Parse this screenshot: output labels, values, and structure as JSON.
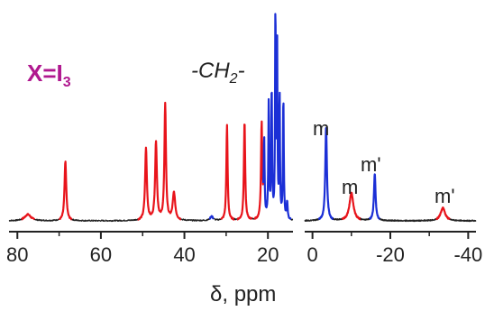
{
  "chart_data": [
    {
      "type": "line",
      "panel": "left",
      "xlabel": "δ, ppm",
      "xlim": [
        82,
        14
      ],
      "ticks": [
        80,
        60,
        40,
        20
      ],
      "tick_labels": [
        "80",
        "60",
        "40",
        "20"
      ],
      "colors": {
        "baseline": "#222222",
        "red": "#e8141b",
        "blue": "#1b2fd6"
      },
      "annotations": {
        "compound": "X=I",
        "compound_sub": "3",
        "ch2_text": "-CH",
        "ch2_sub": "2",
        "ch2_tail": "-"
      },
      "series": [
        {
          "color": "red",
          "peaks": [
            {
              "x": 77.5,
              "h": 0.03,
              "w": 0.9
            },
            {
              "x": 68.5,
              "h": 0.28,
              "w": 0.25
            },
            {
              "x": 49.2,
              "h": 0.34,
              "w": 0.25
            },
            {
              "x": 46.8,
              "h": 0.37,
              "w": 0.25
            },
            {
              "x": 44.6,
              "h": 0.55,
              "w": 0.22
            },
            {
              "x": 42.5,
              "h": 0.13,
              "w": 0.35
            },
            {
              "x": 29.8,
              "h": 0.45,
              "w": 0.18
            },
            {
              "x": 25.6,
              "h": 0.47,
              "w": 0.18
            },
            {
              "x": 21.5,
              "h": 0.45,
              "w": 0.18
            }
          ]
        },
        {
          "color": "blue",
          "peaks": [
            {
              "x": 33.5,
              "h": 0.02,
              "w": 0.4
            },
            {
              "x": 20.9,
              "h": 0.36,
              "w": 0.12
            },
            {
              "x": 19.8,
              "h": 0.55,
              "w": 0.12
            },
            {
              "x": 19.1,
              "h": 0.62,
              "w": 0.12
            },
            {
              "x": 18.2,
              "h": 1.0,
              "w": 0.1
            },
            {
              "x": 17.8,
              "h": 0.83,
              "w": 0.1
            },
            {
              "x": 17.2,
              "h": 0.6,
              "w": 0.1
            },
            {
              "x": 16.3,
              "h": 0.58,
              "w": 0.12
            },
            {
              "x": 15.4,
              "h": 0.08,
              "w": 0.15
            }
          ]
        }
      ]
    },
    {
      "type": "line",
      "panel": "right",
      "xlim": [
        2,
        -42
      ],
      "ticks": [
        0,
        -20,
        -40
      ],
      "tick_labels": [
        "0",
        "-20",
        "-40"
      ],
      "annotations": {
        "m1": "m",
        "m2": "m",
        "m3": "m'",
        "m4": "m'"
      },
      "series": [
        {
          "color": "blue",
          "peaks": [
            {
              "x": -3.5,
              "h": 0.44,
              "w": 0.25
            },
            {
              "x": -16.0,
              "h": 0.22,
              "w": 0.25
            }
          ]
        },
        {
          "color": "red",
          "peaks": [
            {
              "x": -10.0,
              "h": 0.13,
              "w": 0.6
            },
            {
              "x": -33.5,
              "h": 0.06,
              "w": 0.7
            }
          ]
        }
      ]
    }
  ]
}
